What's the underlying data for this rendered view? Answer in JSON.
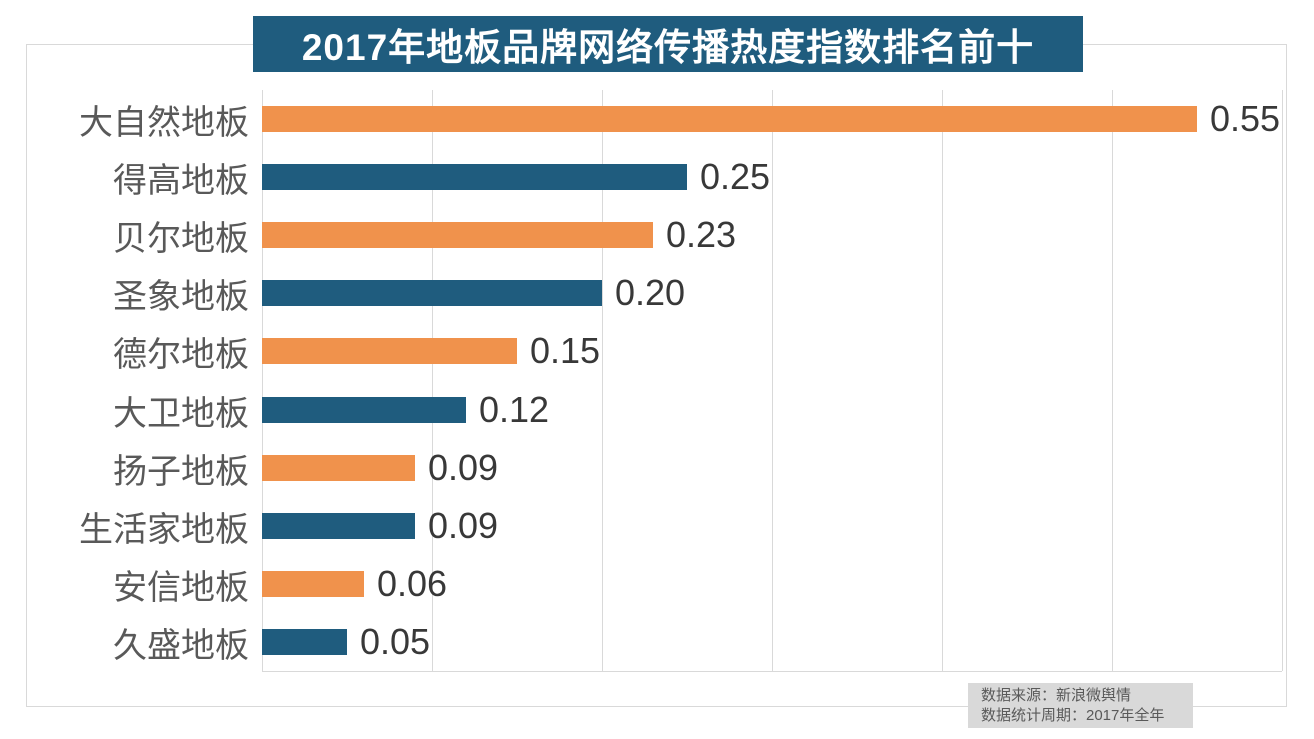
{
  "title": "2017年地板品牌网络传播热度指数排名前十",
  "footer": {
    "line1": "数据来源：新浪微舆情",
    "line2": "数据统计周期：2017年全年"
  },
  "chart_data": {
    "type": "bar",
    "orientation": "horizontal",
    "title": "2017年地板品牌网络传播热度指数排名前十",
    "categories": [
      "大自然地板",
      "得高地板",
      "贝尔地板",
      "圣象地板",
      "德尔地板",
      "大卫地板",
      "扬子地板",
      "生活家地板",
      "安信地板",
      "久盛地板"
    ],
    "values": [
      0.55,
      0.25,
      0.23,
      0.2,
      0.15,
      0.12,
      0.09,
      0.09,
      0.06,
      0.05
    ],
    "value_labels": [
      "0.55",
      "0.25",
      "0.23",
      "0.20",
      "0.15",
      "0.12",
      "0.09",
      "0.09",
      "0.06",
      "0.05"
    ],
    "xlabel": "",
    "ylabel": "",
    "xlim": [
      0,
      0.6
    ],
    "gridline_interval": 0.1,
    "grid": true,
    "legend": false,
    "annotations": [
      "数据来源：新浪微舆情",
      "数据统计周期：2017年全年"
    ]
  },
  "style": {
    "title_bg": "#1F5C7E",
    "title_text": "#FFFFFF",
    "bar_color_odd": "#F0924C",
    "bar_color_even": "#1F5C7E",
    "gridline_color": "#D9D9D9",
    "frame_color": "#D9D9D9",
    "category_label_color": "#595959",
    "value_label_color": "#383838",
    "footer_bg": "#D9D9D9",
    "footer_text": "#595959"
  }
}
